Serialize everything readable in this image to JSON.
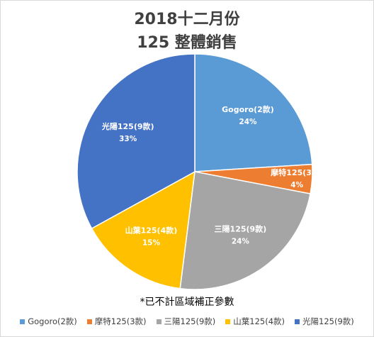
{
  "chart_data": {
    "type": "pie",
    "title_line1": "2018十二月份",
    "title_line2": "125 整體銷售",
    "note": "*已不計區域補正參數",
    "legend_placement": "bottom",
    "slices": [
      {
        "name": "Gogoro(2款)",
        "label": "Gogoro(2款)",
        "value": 24,
        "pct_label": "24%",
        "color": "#5b9bd5"
      },
      {
        "name": "摩特125(3款)",
        "label": "摩特125(3款)",
        "value": 4,
        "pct_label": "4%",
        "color": "#ed7d31"
      },
      {
        "name": "三陽125(9款)",
        "label": "三陽125(9款)",
        "value": 24,
        "pct_label": "24%",
        "color": "#a5a5a5"
      },
      {
        "name": "山葉125(4款)",
        "label": "山葉125(4款)",
        "value": 15,
        "pct_label": "15%",
        "color": "#ffc000"
      },
      {
        "name": "光陽125(9款)",
        "label": "光陽125(9款)",
        "value": 33,
        "pct_label": "33%",
        "color": "#4472c4"
      }
    ]
  }
}
